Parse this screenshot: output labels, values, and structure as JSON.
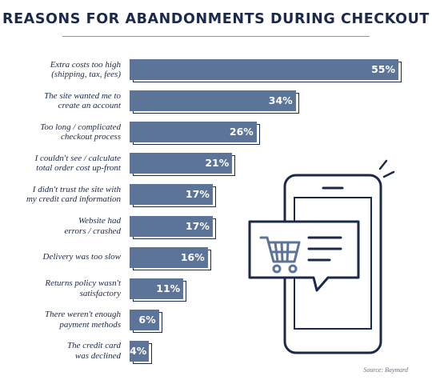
{
  "chart_data": {
    "type": "bar",
    "orientation": "horizontal",
    "title": "REASONS FOR ABANDONMENTS DURING CHECKOUT",
    "categories": [
      [
        "Extra costs too high",
        "(shipping, tax, fees)"
      ],
      [
        "The site wanted me to",
        "create an account"
      ],
      [
        "Too long / complicated",
        "checkout process"
      ],
      [
        "I couldn't see / calculate",
        "total order cost up-front"
      ],
      [
        "I didn't trust the site with",
        "my credit card information"
      ],
      [
        "Website had",
        "errors / crashed"
      ],
      [
        "Delivery was too slow"
      ],
      [
        "Returns policy wasn't",
        "satisfactory"
      ],
      [
        "There weren't enough",
        "payment methods"
      ],
      [
        "The credit card",
        "was declined"
      ]
    ],
    "values": [
      55,
      34,
      26,
      21,
      17,
      17,
      16,
      11,
      6,
      4
    ],
    "value_labels": [
      "55%",
      "34%",
      "26%",
      "21%",
      "17%",
      "17%",
      "16%",
      "11%",
      "6%",
      "4%"
    ],
    "source": "Source: Baymard"
  },
  "colors": {
    "bar_fill": "#5b7497",
    "bar_outline": "#1b2a4a",
    "text": "#1b2a4a"
  },
  "illustration": {
    "icons": [
      "smartphone-icon",
      "shopping-cart-icon",
      "chat-bubble-icon"
    ]
  }
}
